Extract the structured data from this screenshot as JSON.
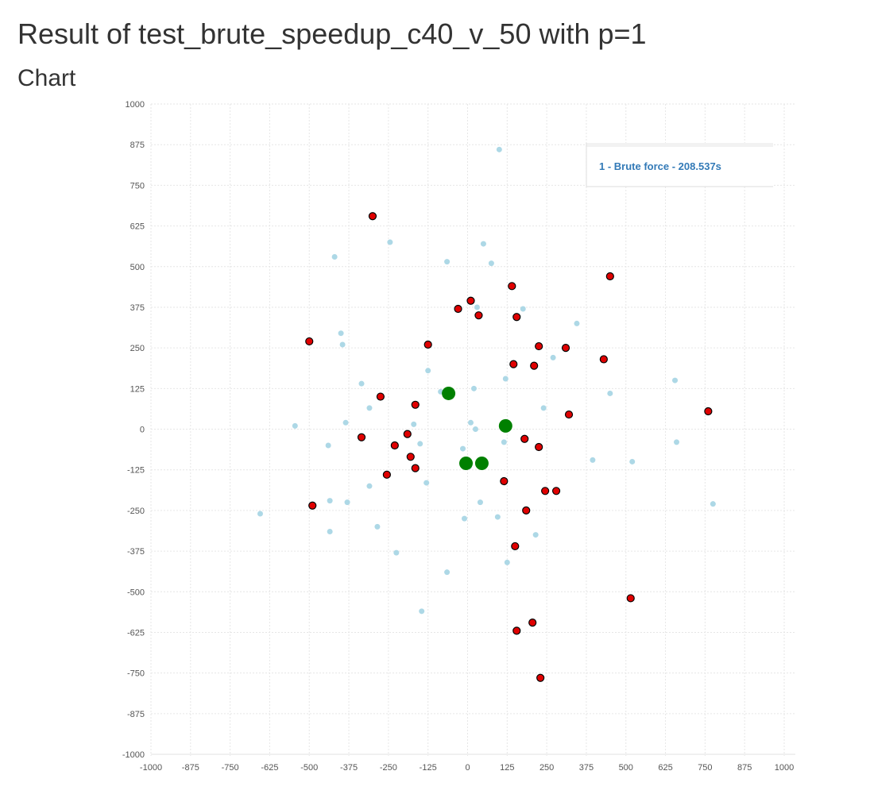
{
  "page": {
    "title": "Result of test_brute_speedup_c40_v_50 with p=1",
    "subtitle": "Chart"
  },
  "chart_data": {
    "type": "scatter",
    "xlim": [
      -1000,
      1000
    ],
    "ylim": [
      -1000,
      1000
    ],
    "xticks": [
      -1000,
      -875,
      -750,
      -625,
      -500,
      -375,
      -250,
      -125,
      0,
      125,
      250,
      375,
      500,
      625,
      750,
      875,
      1000
    ],
    "yticks": [
      -1000,
      -875,
      -750,
      -625,
      -500,
      -375,
      -250,
      -125,
      0,
      125,
      250,
      375,
      500,
      625,
      750,
      875,
      1000
    ],
    "grid": true,
    "legend": {
      "placement": "top-right",
      "entries": [
        "1 - Brute force - 208.537s"
      ],
      "color": "#337ab7"
    },
    "colors": {
      "vertices": "#add8e6",
      "customers": "#e00000",
      "customer_stroke": "#000000",
      "centers": "#008000"
    },
    "series": [
      {
        "role": "vertices",
        "points": [
          [
            100,
            860
          ],
          [
            -245,
            575
          ],
          [
            50,
            570
          ],
          [
            -420,
            530
          ],
          [
            -65,
            515
          ],
          [
            75,
            510
          ],
          [
            30,
            375
          ],
          [
            175,
            370
          ],
          [
            345,
            325
          ],
          [
            -400,
            295
          ],
          [
            -395,
            260
          ],
          [
            270,
            220
          ],
          [
            -125,
            180
          ],
          [
            120,
            155
          ],
          [
            -335,
            140
          ],
          [
            655,
            150
          ],
          [
            20,
            125
          ],
          [
            -85,
            115
          ],
          [
            450,
            110
          ],
          [
            -310,
            65
          ],
          [
            240,
            65
          ],
          [
            10,
            20
          ],
          [
            -385,
            20
          ],
          [
            -170,
            15
          ],
          [
            -545,
            10
          ],
          [
            25,
            0
          ],
          [
            -15,
            -60
          ],
          [
            -150,
            -45
          ],
          [
            115,
            -40
          ],
          [
            -440,
            -50
          ],
          [
            660,
            -40
          ],
          [
            395,
            -95
          ],
          [
            520,
            -100
          ],
          [
            5,
            -115
          ],
          [
            -130,
            -165
          ],
          [
            -310,
            -175
          ],
          [
            -435,
            -220
          ],
          [
            -380,
            -225
          ],
          [
            40,
            -225
          ],
          [
            775,
            -230
          ],
          [
            -655,
            -260
          ],
          [
            -10,
            -275
          ],
          [
            95,
            -270
          ],
          [
            -285,
            -300
          ],
          [
            -435,
            -315
          ],
          [
            215,
            -325
          ],
          [
            -225,
            -380
          ],
          [
            125,
            -410
          ],
          [
            -65,
            -440
          ],
          [
            -145,
            -560
          ]
        ]
      },
      {
        "role": "customers",
        "points": [
          [
            -300,
            655
          ],
          [
            450,
            470
          ],
          [
            140,
            440
          ],
          [
            10,
            395
          ],
          [
            -30,
            370
          ],
          [
            35,
            350
          ],
          [
            155,
            345
          ],
          [
            -500,
            270
          ],
          [
            -125,
            260
          ],
          [
            225,
            255
          ],
          [
            310,
            250
          ],
          [
            430,
            215
          ],
          [
            145,
            200
          ],
          [
            210,
            195
          ],
          [
            -275,
            100
          ],
          [
            -165,
            75
          ],
          [
            760,
            55
          ],
          [
            320,
            45
          ],
          [
            -335,
            -25
          ],
          [
            -190,
            -15
          ],
          [
            180,
            -30
          ],
          [
            -230,
            -50
          ],
          [
            225,
            -55
          ],
          [
            -180,
            -85
          ],
          [
            -165,
            -120
          ],
          [
            -255,
            -140
          ],
          [
            115,
            -160
          ],
          [
            245,
            -190
          ],
          [
            280,
            -190
          ],
          [
            -490,
            -235
          ],
          [
            185,
            -250
          ],
          [
            150,
            -360
          ],
          [
            515,
            -520
          ],
          [
            205,
            -595
          ],
          [
            155,
            -620
          ],
          [
            230,
            -765
          ]
        ]
      },
      {
        "role": "centers",
        "points": [
          [
            -60,
            110
          ],
          [
            120,
            10
          ],
          [
            -5,
            -105
          ],
          [
            45,
            -105
          ]
        ]
      }
    ]
  }
}
